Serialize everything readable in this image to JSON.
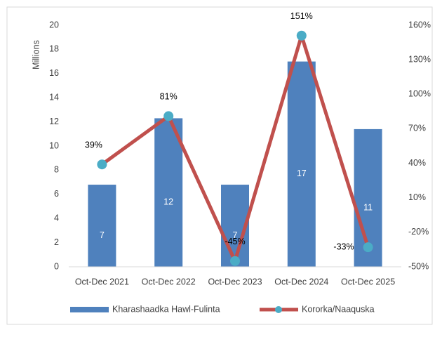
{
  "chart_data": {
    "type": "bar-line",
    "categories": [
      "Oct-Dec 2021",
      "Oct-Dec 2022",
      "Oct-Dec 2023",
      "Oct-Dec 2024",
      "Oct-Dec 2025"
    ],
    "ylabel": "Millions",
    "ylim": [
      0,
      20
    ],
    "yticks": [
      0,
      2,
      4,
      6,
      8,
      10,
      12,
      14,
      16,
      18,
      20
    ],
    "y2lim": [
      -50,
      160
    ],
    "y2ticks": [
      {
        "value": -50,
        "label": "-50%"
      },
      {
        "value": -20,
        "label": "-20%"
      },
      {
        "value": 10,
        "label": "10%"
      },
      {
        "value": 40,
        "label": "40%"
      },
      {
        "value": 70,
        "label": "70%"
      },
      {
        "value": 100,
        "label": "100%"
      },
      {
        "value": 130,
        "label": "130%"
      },
      {
        "value": 160,
        "label": "160%"
      }
    ],
    "grid": false,
    "legend": "bottom",
    "series": [
      {
        "name": "Kharashaadka Hawl-Fulinta",
        "type": "bar",
        "color": "#4f81bd",
        "values": [
          6.8,
          12.3,
          6.8,
          17.0,
          11.4
        ],
        "value_labels": [
          "7",
          "12",
          "7",
          "17",
          "11"
        ]
      },
      {
        "name": "Kororka/Naaquska",
        "type": "line",
        "axis": "y2",
        "color": "#c0504d",
        "marker_color": "#4bacc6",
        "values": [
          39,
          81,
          -45,
          151,
          -33
        ],
        "value_labels": [
          "39%",
          "81%",
          "-45%",
          "151%",
          "-33%"
        ]
      }
    ]
  }
}
